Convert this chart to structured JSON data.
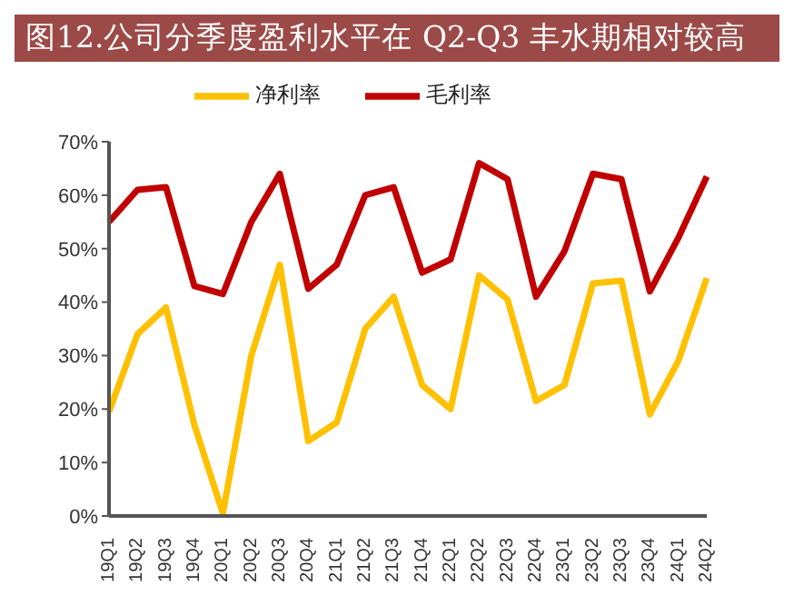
{
  "chart_data": {
    "type": "line",
    "title": "图12.公司分季度盈利水平在 Q2-Q3 丰水期相对较高",
    "categories": [
      "19Q1",
      "19Q2",
      "19Q3",
      "19Q4",
      "20Q1",
      "20Q2",
      "20Q3",
      "20Q4",
      "21Q1",
      "21Q2",
      "21Q3",
      "21Q4",
      "22Q1",
      "22Q2",
      "22Q3",
      "22Q4",
      "23Q1",
      "23Q2",
      "23Q3",
      "23Q4",
      "24Q1",
      "24Q2"
    ],
    "series": [
      {
        "name": "毛利率",
        "color": "#c00000",
        "values": [
          55,
          61,
          61.5,
          43,
          41.5,
          55,
          64,
          42.5,
          47,
          60,
          61.5,
          45.5,
          48,
          66,
          63,
          41,
          49.5,
          64,
          63,
          42,
          52,
          63.5
        ]
      },
      {
        "name": "净利率",
        "color": "#ffc000",
        "values": [
          19.5,
          34,
          39,
          17,
          0.5,
          30,
          47,
          14,
          17.5,
          35,
          41,
          24.5,
          20,
          45,
          40.5,
          21.5,
          24.5,
          43.5,
          44,
          19,
          29,
          44.5
        ]
      }
    ],
    "ylim": [
      0,
      70
    ],
    "yticks": [
      {
        "value": 0,
        "label": "0%"
      },
      {
        "value": 10,
        "label": "10%"
      },
      {
        "value": 20,
        "label": "20%"
      },
      {
        "value": 30,
        "label": "30%"
      },
      {
        "value": 40,
        "label": "40%"
      },
      {
        "value": 50,
        "label": "50%"
      },
      {
        "value": 60,
        "label": "60%"
      },
      {
        "value": 70,
        "label": "70%"
      }
    ],
    "grid": false,
    "legend": "top",
    "marker": "none",
    "line_style": "solid"
  }
}
